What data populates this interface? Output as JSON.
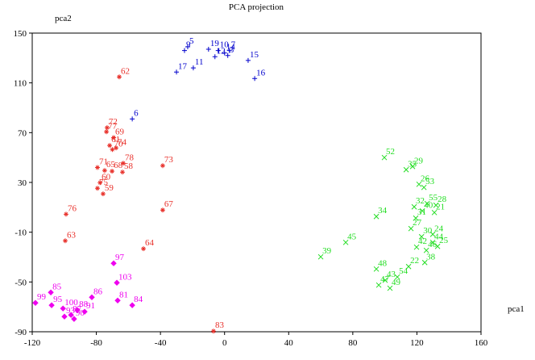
{
  "chart_data": {
    "type": "scatter",
    "title": "PCA projection",
    "x_label": "pca1",
    "y_label": "pca2",
    "xlim": [
      -120,
      160
    ],
    "ylim": [
      -90,
      150
    ],
    "xticks": [
      -120,
      -80,
      -40,
      0,
      40,
      80,
      120,
      160
    ],
    "yticks": [
      -90,
      -50,
      -10,
      30,
      70,
      110,
      150
    ],
    "grid": false,
    "series": [
      {
        "color": "#0000cc",
        "marker": "plus",
        "x": [
          -23,
          -25,
          -30,
          -19.5,
          14.7,
          18.8,
          -57.6,
          -10,
          -4,
          0,
          2,
          -6,
          3
        ],
        "y": [
          139,
          136,
          118.7,
          122,
          128,
          113.5,
          81,
          137,
          136,
          134,
          132,
          131,
          136
        ],
        "labels": [
          "5",
          "9",
          "17",
          "11",
          "15",
          "16",
          "6",
          "19",
          "10",
          "14",
          "3",
          "12",
          "7"
        ]
      },
      {
        "color": "#e8302a",
        "marker": "star",
        "x": [
          -65.7,
          -73.3,
          -73.7,
          -69.2,
          -71.7,
          -70,
          -67.7,
          -63.2,
          -38.6,
          -79.3,
          -74.8,
          -70.2,
          -63.7,
          -77.7,
          -79.3,
          -75.8,
          -38.6,
          -98.9,
          -99.4,
          -50.6,
          -6.9
        ],
        "y": [
          114.8,
          74,
          70.7,
          66,
          59.7,
          56.4,
          57.7,
          45.4,
          43.5,
          42,
          39.6,
          39,
          38.3,
          29.8,
          25.3,
          20.8,
          7.8,
          4.5,
          -16.9,
          -23.3,
          -89.5
        ],
        "labels": [
          "62",
          "72",
          "77",
          "69",
          "61",
          "70",
          "74",
          "78",
          "73",
          "71",
          "65",
          "68",
          "58",
          "60",
          "75",
          "59",
          "67",
          "76",
          "63",
          "64",
          "83"
        ]
      },
      {
        "color": "#22dd22",
        "marker": "cross",
        "x": [
          99.7,
          117.3,
          113.3,
          121.3,
          124.4,
          94.7,
          118.3,
          126.4,
          131.9,
          130.9,
          123.4,
          119.3,
          116.3,
          122.9,
          129.9,
          129.9,
          132.9,
          125.9,
          119.8,
          75.6,
          60,
          94.7,
          114.8,
          124.9,
          107.8,
          96.2,
          100.2,
          103.2
        ],
        "y": [
          50,
          42.8,
          40.2,
          28.5,
          26,
          2.6,
          10.4,
          13,
          11.7,
          5.8,
          7.1,
          1.3,
          -7.1,
          -13.6,
          -11.7,
          -18.2,
          -21.4,
          -24.6,
          -22,
          -18.2,
          -29.8,
          -39.6,
          -37.6,
          -34.4,
          -46,
          -52.5,
          -48.6,
          -55
        ],
        "labels": [
          "52",
          "29",
          "35",
          "26",
          "53",
          "34",
          "32",
          "55",
          "28",
          "21",
          "40",
          "31",
          "27",
          "30",
          "24",
          "44",
          "25",
          "46",
          "42",
          "45",
          "39",
          "48",
          "22",
          "38",
          "54",
          "47",
          "43",
          "49"
        ]
      },
      {
        "color": "#ee00ee",
        "marker": "diamond",
        "x": [
          -69.2,
          -67.2,
          -82.8,
          -108.4,
          -66.7,
          -57.6,
          -118,
          -107.9,
          -87.3,
          -91.8,
          -100.8,
          -95.8,
          -99.9,
          -93.9
        ],
        "y": [
          -35,
          -50.6,
          -62.3,
          -58.4,
          -64.9,
          -68.7,
          -66.8,
          -68.7,
          -73.9,
          -72.6,
          -71.3,
          -76.5,
          -77.8,
          -79.7
        ],
        "labels": [
          "97",
          "103",
          "86",
          "85",
          "81",
          "84",
          "99",
          "95",
          "91",
          "88",
          "100",
          "87",
          "93",
          "90"
        ]
      }
    ]
  }
}
